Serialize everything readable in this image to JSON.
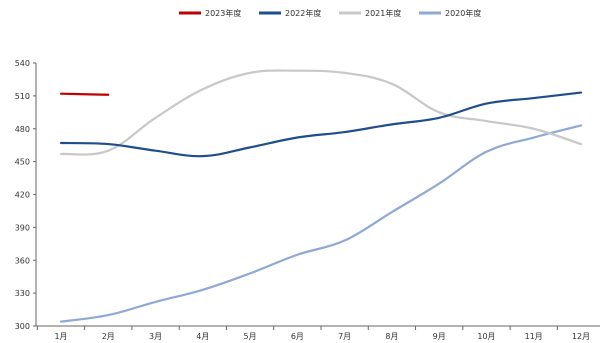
{
  "chart_data": {
    "type": "line",
    "categories": [
      "1月",
      "2月",
      "3月",
      "4月",
      "5月",
      "6月",
      "7月",
      "8月",
      "9月",
      "10月",
      "11月",
      "12月"
    ],
    "ylim": [
      300,
      540
    ],
    "yticks": [
      300,
      330,
      360,
      390,
      420,
      450,
      480,
      510,
      540
    ],
    "xlabel": "",
    "ylabel": "",
    "title": "",
    "grid": false,
    "legend_position": "top-center",
    "series": [
      {
        "name": "2023年度",
        "color": "#c00000",
        "values": [
          512,
          511,
          null,
          null,
          null,
          null,
          null,
          null,
          null,
          null,
          null,
          null
        ]
      },
      {
        "name": "2022年度",
        "color": "#1f4e8c",
        "values": [
          467,
          466,
          460,
          455,
          463,
          472,
          477,
          484,
          490,
          503,
          508,
          513
        ]
      },
      {
        "name": "2021年度",
        "color": "#c8c8c8",
        "values": [
          457,
          460,
          490,
          516,
          531,
          533,
          531,
          521,
          495,
          487,
          480,
          466
        ]
      },
      {
        "name": "2020年度",
        "color": "#8ea9d6",
        "values": [
          304,
          310,
          322,
          333,
          348,
          365,
          378,
          404,
          430,
          459,
          472,
          483
        ]
      }
    ]
  }
}
